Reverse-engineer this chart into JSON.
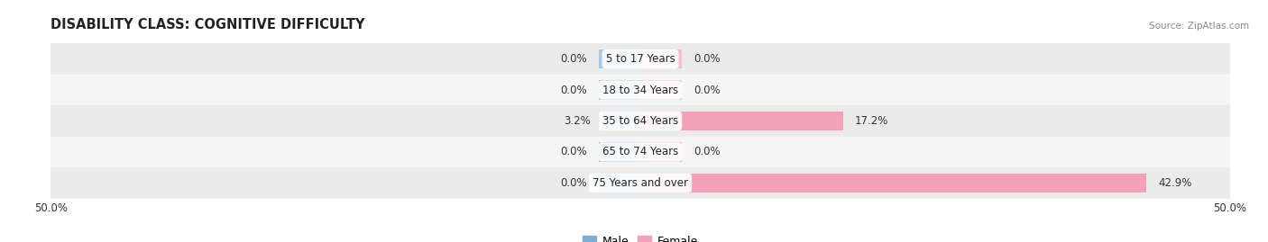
{
  "title": "DISABILITY CLASS: COGNITIVE DIFFICULTY",
  "source": "Source: ZipAtlas.com",
  "categories": [
    "5 to 17 Years",
    "18 to 34 Years",
    "35 to 64 Years",
    "65 to 74 Years",
    "75 Years and over"
  ],
  "male_values": [
    0.0,
    0.0,
    3.2,
    0.0,
    0.0
  ],
  "female_values": [
    0.0,
    0.0,
    17.2,
    0.0,
    42.9
  ],
  "male_color": "#7bafd4",
  "female_color": "#f4a0b8",
  "male_stub_color": "#a8c8e8",
  "female_stub_color": "#f7bdd0",
  "max_val": 50.0,
  "x_min": -50.0,
  "x_max": 50.0,
  "bar_height": 0.62,
  "stub_size": 3.5,
  "row_colors": [
    "#ebebeb",
    "#f5f5f5",
    "#ebebeb",
    "#f5f5f5",
    "#ebebeb"
  ],
  "title_fontsize": 10.5,
  "label_fontsize": 8.5,
  "tick_fontsize": 8.5,
  "legend_fontsize": 9,
  "value_label_color": "#333333"
}
